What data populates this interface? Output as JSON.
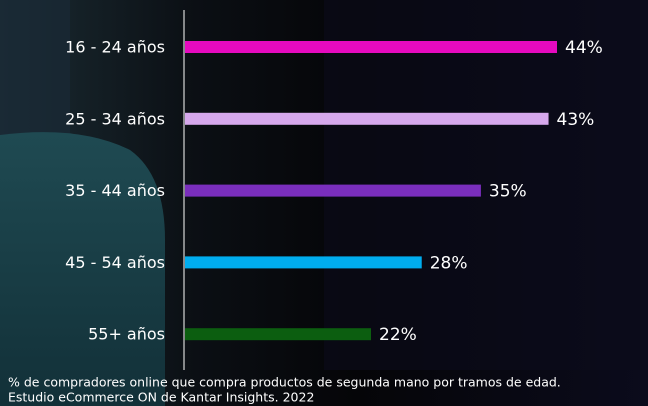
{
  "chart_data": {
    "type": "bar",
    "orientation": "horizontal",
    "categories": [
      "16 - 24 años",
      "25 - 34 años",
      "35 - 44 años",
      "45 - 54 años",
      "55+ años"
    ],
    "values": [
      44,
      43,
      35,
      28,
      22
    ],
    "value_labels": [
      "44%",
      "43%",
      "35%",
      "28%",
      "22%"
    ],
    "colors": [
      "#e60abf",
      "#d6a8ec",
      "#7a2ebd",
      "#00adef",
      "#0c5e10"
    ],
    "footnotes": [
      "% de compradores online que compra productos de segunda mano por tramos de edad.",
      "Estudio eCommerce ON de Kantar Insights. 2022"
    ]
  }
}
